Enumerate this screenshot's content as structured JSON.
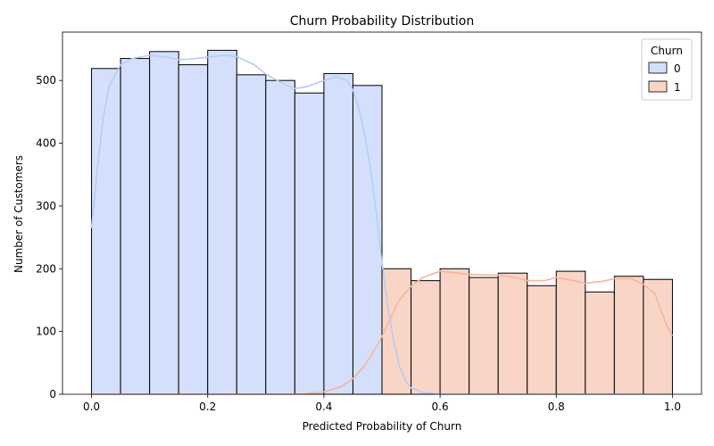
{
  "chart_data": {
    "type": "bar",
    "title": "Churn Probability Distribution",
    "xlabel": "Predicted Probability of Churn",
    "ylabel": "Number of Customers",
    "xlim": [
      -0.05,
      1.05
    ],
    "ylim": [
      0,
      577
    ],
    "x_ticks": [
      0.0,
      0.2,
      0.4,
      0.6,
      0.8,
      1.0
    ],
    "x_tick_labels": [
      "0.0",
      "0.2",
      "0.4",
      "0.6",
      "0.8",
      "1.0"
    ],
    "y_ticks": [
      0,
      100,
      200,
      300,
      400,
      500
    ],
    "y_tick_labels": [
      "0",
      "100",
      "200",
      "300",
      "400",
      "500"
    ],
    "bin_edges": [
      0.0,
      0.05,
      0.1,
      0.15,
      0.2,
      0.25,
      0.3,
      0.35,
      0.4,
      0.45,
      0.5,
      0.55,
      0.6,
      0.65,
      0.7,
      0.75,
      0.8,
      0.85,
      0.9,
      0.95,
      1.0
    ],
    "grid": false,
    "legend": {
      "title": "Churn",
      "position": "top-right"
    },
    "series": [
      {
        "name": "0",
        "color": "#b7cbf6",
        "fill": "#d4e0fb",
        "values": [
          519,
          535,
          546,
          525,
          548,
          509,
          500,
          480,
          511,
          492,
          1,
          0,
          0,
          0,
          0,
          0,
          0,
          0,
          0,
          0
        ],
        "kde": {
          "x": [
            0.0,
            0.01,
            0.02,
            0.03,
            0.05,
            0.07,
            0.1,
            0.13,
            0.15,
            0.18,
            0.2,
            0.23,
            0.25,
            0.28,
            0.3,
            0.33,
            0.35,
            0.37,
            0.4,
            0.42,
            0.44,
            0.45,
            0.46,
            0.47,
            0.48,
            0.49,
            0.5,
            0.51,
            0.52,
            0.53,
            0.54,
            0.55,
            0.57,
            0.6,
            1.0
          ],
          "y": [
            265,
            360,
            440,
            490,
            525,
            535,
            540,
            537,
            533,
            535,
            537,
            540,
            538,
            525,
            510,
            495,
            487,
            490,
            500,
            506,
            500,
            485,
            455,
            415,
            360,
            290,
            210,
            140,
            85,
            45,
            22,
            10,
            3,
            0,
            0
          ]
        }
      },
      {
        "name": "1",
        "color": "#f5b59b",
        "fill": "#f9d5c7",
        "values": [
          0,
          0,
          0,
          0,
          0,
          0,
          0,
          0,
          0,
          0,
          200,
          181,
          200,
          186,
          193,
          173,
          196,
          163,
          188,
          183
        ],
        "kde": {
          "x": [
            0.0,
            0.36,
            0.4,
            0.43,
            0.45,
            0.47,
            0.49,
            0.5,
            0.51,
            0.52,
            0.53,
            0.55,
            0.57,
            0.6,
            0.63,
            0.65,
            0.68,
            0.7,
            0.73,
            0.75,
            0.78,
            0.8,
            0.83,
            0.85,
            0.88,
            0.9,
            0.93,
            0.95,
            0.97,
            0.98,
            0.99,
            1.0
          ],
          "y": [
            0,
            0,
            4,
            12,
            25,
            45,
            75,
            92,
            112,
            132,
            150,
            172,
            186,
            196,
            193,
            191,
            190,
            190,
            186,
            181,
            181,
            186,
            181,
            177,
            180,
            184,
            184,
            175,
            160,
            135,
            110,
            93
          ]
        }
      }
    ]
  }
}
